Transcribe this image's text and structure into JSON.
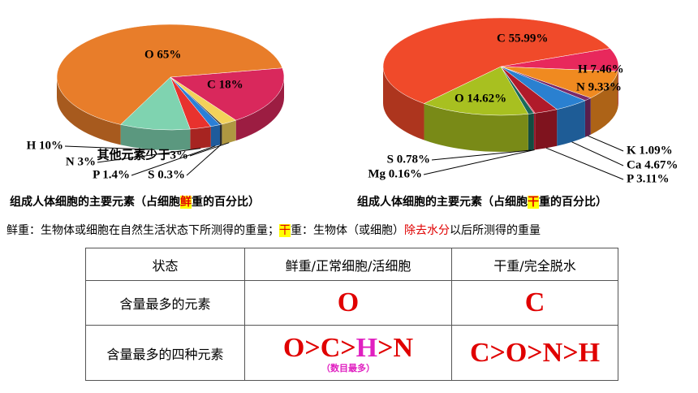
{
  "chart_data": [
    {
      "type": "pie",
      "value_labels": [
        "C 18%",
        "其他元素少于3%",
        "S 0.3%",
        "P 1.4%",
        "N 3%",
        "H 10%",
        "O 65%"
      ],
      "values": [
        18,
        2.3,
        0.3,
        1.4,
        3,
        10,
        65
      ],
      "colors": [
        "#d9285c",
        "#f3d25a",
        "#3a3a3a",
        "#2a7fd8",
        "#e8322e",
        "#7fd3b0",
        "#e87d2a"
      ]
    },
    {
      "type": "pie",
      "value_labels": [
        "H 7.46%",
        "N 9.33%",
        "K 1.09%",
        "Ca 4.67%",
        "P 3.11%",
        "Mg 0.16%",
        "S 0.78%",
        "O 14.62%",
        "C 55.99%"
      ],
      "values": [
        7.46,
        9.33,
        1.09,
        4.67,
        3.11,
        0.16,
        0.78,
        14.62,
        55.99
      ],
      "colors": [
        "#e8285c",
        "#f08a20",
        "#7a2a6a",
        "#2a80d0",
        "#b01a2a",
        "#e01a3a",
        "#1a6a5a",
        "#a8c020",
        "#f04a2a"
      ]
    }
  ],
  "captions": [
    [
      "组成人体细胞的主要元素（占细胞",
      "鲜",
      "重的百分比）"
    ],
    [
      "组成人体细胞的主要元素（占细胞",
      "干",
      "重的百分比）"
    ]
  ],
  "definition": [
    "鲜重：生物体或细胞在自然生活状态下所测得的重量；",
    "干",
    "重：生物体（或细胞）",
    "除去水分",
    "以后所测得的重量"
  ],
  "table": {
    "header": [
      "状态",
      "鲜重/正常细胞/活细胞",
      "干重/完全脱水"
    ],
    "rows": [
      [
        "含量最多的元素",
        "O",
        "C"
      ],
      [
        "含量最多的四种元素",
        [
          "O>C>",
          "H",
          ">N"
        ],
        "C>O>N>H"
      ]
    ],
    "note": "（数目最多）"
  }
}
